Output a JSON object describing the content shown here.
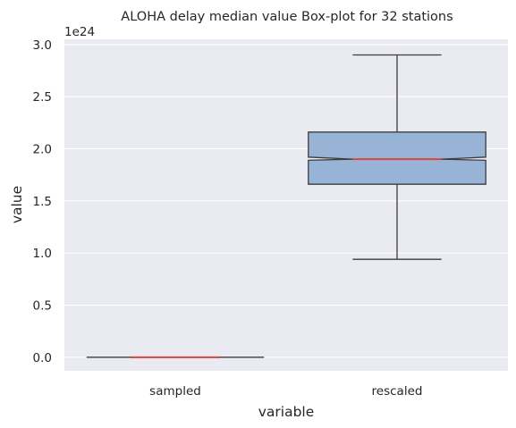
{
  "chart_data": {
    "type": "box",
    "title": "ALOHA delay median value Box-plot for 32 stations",
    "xlabel": "variable",
    "ylabel": "value",
    "y_offset_label": "1e24",
    "ylim": [
      -0.13,
      3.05
    ],
    "yticks": [
      0.0,
      0.5,
      1.0,
      1.5,
      2.0,
      2.5,
      3.0
    ],
    "ytick_labels": [
      "0.0",
      "0.5",
      "1.0",
      "1.5",
      "2.0",
      "2.5",
      "3.0"
    ],
    "grid": true,
    "notched": true,
    "categories": [
      "sampled",
      "rescaled"
    ],
    "boxes": [
      {
        "category": "sampled",
        "whislo": 0.0,
        "q1": 0.0,
        "med": 0.0,
        "q3": 0.0,
        "whishi": 0.0,
        "notch_lo": 0.0,
        "notch_hi": 0.0
      },
      {
        "category": "rescaled",
        "whislo": 0.94,
        "q1": 1.66,
        "med": 1.9,
        "q3": 2.16,
        "whishi": 2.9,
        "notch_lo": 1.89,
        "notch_hi": 1.92
      }
    ],
    "colors": {
      "background": "#eaeaf2",
      "grid": "#ffffff",
      "box_fill": "#97b4d6",
      "box_edge": "#3d3d3d",
      "median": "#d9463b"
    }
  }
}
